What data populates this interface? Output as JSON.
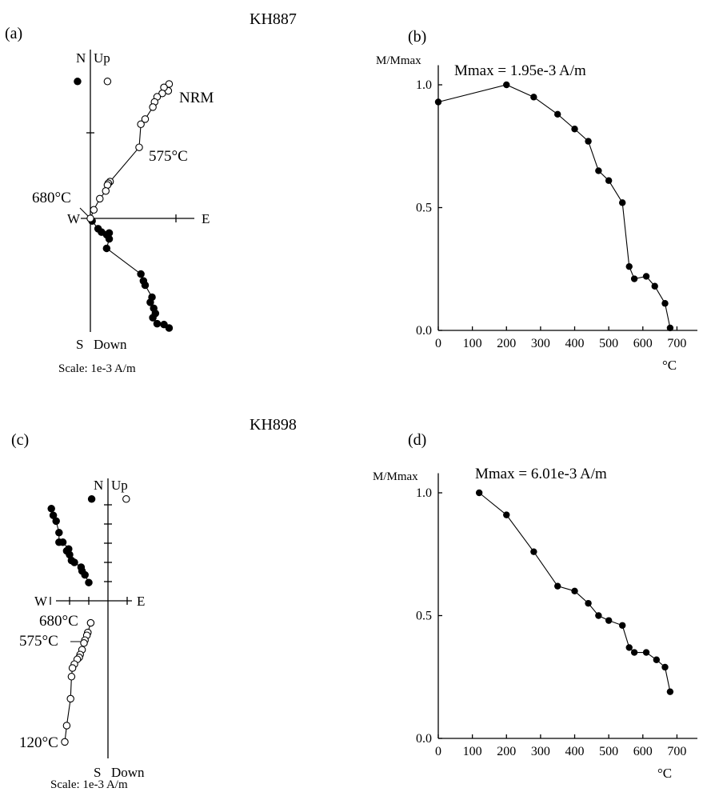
{
  "figure": {
    "top_specimen": "KH887",
    "bottom_specimen": "KH898",
    "panel_a": "(a)",
    "panel_b": "(b)",
    "panel_c": "(c)",
    "panel_d": "(d)"
  },
  "chart_data": [
    {
      "id": "a",
      "type": "scatter",
      "subtype": "zijderveld",
      "axis_labels": {
        "north": "N",
        "south": "S",
        "west": "W",
        "east": "E",
        "up": "Up",
        "down": "Down"
      },
      "scale_label": "Scale: 1e-3 A/m",
      "tick_interval": 1,
      "lim": {
        "east": 1.15,
        "west": -0.05,
        "north": 1.65,
        "south": -1.35
      },
      "annotations": [
        {
          "text": "NRM",
          "at": "first-open-point"
        },
        {
          "text": "575°C",
          "at": "open-point",
          "x": 0.57,
          "y": 0.83
        },
        {
          "text": "680°C",
          "at": "origin"
        }
      ],
      "series": [
        {
          "name": "",
          "marker": "filled",
          "plane": "horizontal",
          "points": [
            [
              0.92,
              -1.28
            ],
            [
              0.86,
              -1.24
            ],
            [
              0.78,
              -1.23
            ],
            [
              0.73,
              -1.16
            ],
            [
              0.76,
              -1.11
            ],
            [
              0.74,
              -1.05
            ],
            [
              0.7,
              -0.98
            ],
            [
              0.72,
              -0.92
            ],
            [
              0.64,
              -0.78
            ],
            [
              0.62,
              -0.73
            ],
            [
              0.59,
              -0.65
            ],
            [
              0.19,
              -0.35
            ],
            [
              0.22,
              -0.24
            ],
            [
              0.19,
              -0.19
            ],
            [
              0.22,
              -0.17
            ],
            [
              0.13,
              -0.16
            ],
            [
              0.09,
              -0.12
            ],
            [
              0.02,
              -0.03
            ]
          ]
        },
        {
          "name": "",
          "marker": "open",
          "plane": "vertical",
          "points": [
            [
              0.92,
              1.57
            ],
            [
              0.91,
              1.49
            ],
            [
              0.86,
              1.53
            ],
            [
              0.84,
              1.46
            ],
            [
              0.78,
              1.42
            ],
            [
              0.75,
              1.36
            ],
            [
              0.73,
              1.3
            ],
            [
              0.64,
              1.16
            ],
            [
              0.59,
              1.1
            ],
            [
              0.57,
              0.83
            ],
            [
              0.23,
              0.43
            ],
            [
              0.21,
              0.41
            ],
            [
              0.2,
              0.39
            ],
            [
              0.18,
              0.32
            ],
            [
              0.11,
              0.23
            ],
            [
              0.04,
              0.1
            ],
            [
              0.0,
              0.0
            ]
          ]
        }
      ],
      "extra_legend": {
        "filled": {
          "x": -0.15,
          "y": 1.6
        },
        "open": {
          "x": 0.2,
          "y": 1.6
        }
      }
    },
    {
      "id": "b",
      "type": "line",
      "annotation": "Mmax = 1.95e-3 A/m",
      "xlabel": "°C",
      "ylabel": "M/Mmax",
      "xlim": [
        0,
        760
      ],
      "ylim": [
        0,
        1.08
      ],
      "xticks": [
        0,
        100,
        200,
        300,
        400,
        500,
        600,
        700
      ],
      "yticks": [
        0.0,
        0.5,
        1.0
      ],
      "x": [
        0,
        200,
        280,
        350,
        400,
        440,
        470,
        500,
        540,
        560,
        575,
        610,
        635,
        665,
        680
      ],
      "y": [
        0.93,
        1.0,
        0.95,
        0.88,
        0.82,
        0.77,
        0.65,
        0.61,
        0.52,
        0.26,
        0.21,
        0.22,
        0.18,
        0.11,
        0.01
      ]
    },
    {
      "id": "c",
      "type": "scatter",
      "subtype": "zijderveld",
      "axis_labels": {
        "north": "N",
        "south": "S",
        "west": "W",
        "east": "E",
        "up": "Up",
        "down": "Down"
      },
      "scale_label": "Scale: 1e-3 A/m",
      "tick_interval": 1,
      "lim": {
        "east": 1.55,
        "west": -3.85,
        "north": 5.55,
        "south": -8.25
      },
      "annotations": [
        {
          "text": "680°C",
          "at": "first-open-point"
        },
        {
          "text": "575°C",
          "at": "open-point",
          "x": -1.2,
          "y": -2.15
        },
        {
          "text": "120°C",
          "at": "last-open-point"
        }
      ],
      "series": [
        {
          "name": "",
          "marker": "filled",
          "plane": "horizontal",
          "points": [
            [
              -1.0,
              0.95
            ],
            [
              -1.2,
              1.35
            ],
            [
              -1.35,
              1.55
            ],
            [
              -1.4,
              1.75
            ],
            [
              -1.75,
              2.0
            ],
            [
              -1.9,
              2.1
            ],
            [
              -2.0,
              2.4
            ],
            [
              -2.15,
              2.6
            ],
            [
              -2.05,
              2.7
            ],
            [
              -2.35,
              3.05
            ],
            [
              -2.55,
              3.05
            ],
            [
              -2.55,
              3.55
            ],
            [
              -2.7,
              4.15
            ],
            [
              -2.85,
              4.45
            ],
            [
              -2.95,
              4.8
            ]
          ]
        },
        {
          "name": "",
          "marker": "open",
          "plane": "vertical",
          "points": [
            [
              -0.9,
              -1.15
            ],
            [
              -1.05,
              -1.65
            ],
            [
              -1.1,
              -1.8
            ],
            [
              -1.2,
              -2.05
            ],
            [
              -1.25,
              -2.2
            ],
            [
              -1.35,
              -2.55
            ],
            [
              -1.45,
              -2.8
            ],
            [
              -1.5,
              -2.95
            ],
            [
              -1.6,
              -3.05
            ],
            [
              -1.75,
              -3.3
            ],
            [
              -1.85,
              -3.5
            ],
            [
              -1.9,
              -3.95
            ],
            [
              -1.95,
              -5.1
            ],
            [
              -2.15,
              -6.5
            ],
            [
              -2.25,
              -7.35
            ]
          ]
        }
      ],
      "extra_legend": {
        "filled": {
          "x": -0.85,
          "y": 5.3
        },
        "open": {
          "x": 0.95,
          "y": 5.3
        }
      }
    },
    {
      "id": "d",
      "type": "line",
      "annotation": "Mmax = 6.01e-3 A/m",
      "xlabel": "°C",
      "ylabel": "M/Mmax",
      "xlim": [
        0,
        760
      ],
      "ylim": [
        0,
        1.08
      ],
      "xticks": [
        0,
        100,
        200,
        300,
        400,
        500,
        600,
        700
      ],
      "yticks": [
        0.0,
        0.5,
        1.0
      ],
      "x": [
        120,
        200,
        280,
        350,
        400,
        440,
        470,
        500,
        540,
        560,
        575,
        610,
        640,
        665,
        680
      ],
      "y": [
        1.0,
        0.91,
        0.76,
        0.62,
        0.6,
        0.55,
        0.5,
        0.48,
        0.46,
        0.37,
        0.35,
        0.35,
        0.32,
        0.29,
        0.19
      ]
    }
  ]
}
